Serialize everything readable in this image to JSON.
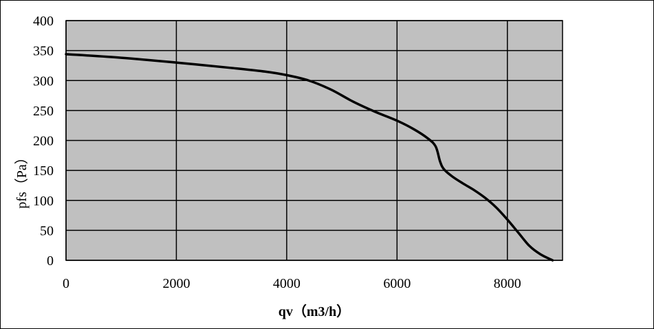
{
  "chart_data": {
    "type": "line",
    "title": "",
    "xlabel": "qv（m3/h）",
    "ylabel": "pfs（Pa）",
    "xlim": [
      0,
      9000
    ],
    "ylim": [
      0,
      400
    ],
    "x_ticks": [
      0,
      2000,
      4000,
      6000,
      8000
    ],
    "y_ticks": [
      0,
      50,
      100,
      150,
      200,
      250,
      300,
      350,
      400
    ],
    "grid": true,
    "legend": "none",
    "colors": {
      "plot_background": "#c0c0c0",
      "grid": "#000000",
      "line": "#000000",
      "frame": "#000000"
    },
    "series": [
      {
        "x": [
          0,
          1000,
          2000,
          3000,
          3600,
          4000,
          4400,
          4800,
          5200,
          5600,
          6000,
          6300,
          6550,
          6700,
          6780,
          6850,
          7000,
          7200,
          7400,
          7600,
          7800,
          8000,
          8200,
          8400,
          8600,
          8820
        ],
        "y": [
          344,
          338,
          330,
          321,
          315,
          309,
          300,
          285,
          265,
          248,
          233,
          219,
          204,
          190,
          165,
          152,
          140,
          128,
          117,
          104,
          88,
          68,
          46,
          24,
          10,
          0
        ]
      }
    ]
  }
}
